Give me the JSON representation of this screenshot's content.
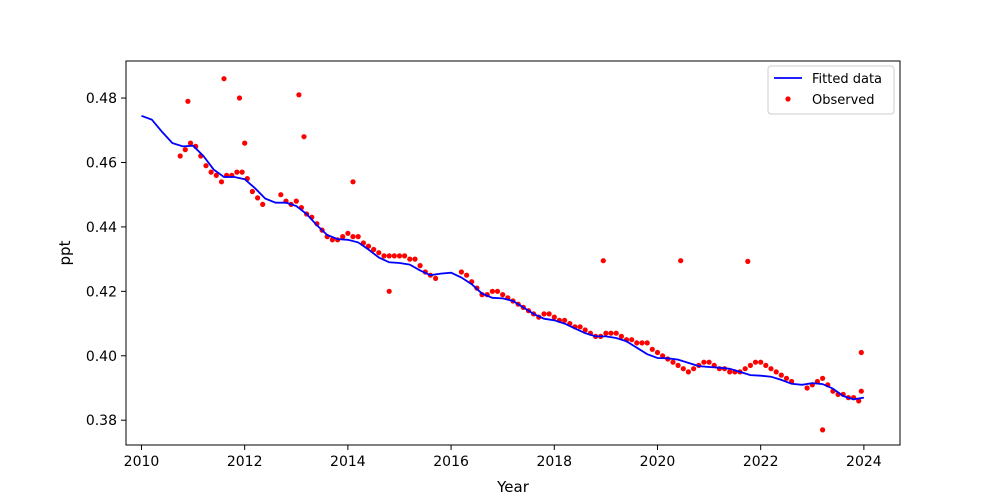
{
  "chart_data": {
    "type": "scatter",
    "title": "",
    "xlabel": "Year",
    "ylabel": "ppt",
    "xlim": [
      2009.7,
      2024.7
    ],
    "ylim": [
      0.3723,
      0.4915
    ],
    "x_ticks": [
      2010,
      2012,
      2014,
      2016,
      2018,
      2020,
      2022,
      2024
    ],
    "x_tick_labels": [
      "2010",
      "2012",
      "2014",
      "2016",
      "2018",
      "2020",
      "2022",
      "2024"
    ],
    "y_ticks": [
      0.38,
      0.4,
      0.42,
      0.44,
      0.46,
      0.48
    ],
    "y_tick_labels": [
      "0.38",
      "0.40",
      "0.42",
      "0.44",
      "0.46",
      "0.48"
    ],
    "grid": false,
    "legend": {
      "position": "top-right",
      "entries": [
        {
          "label": "Fitted data",
          "kind": "line",
          "color": "#0000ff"
        },
        {
          "label": "Observed",
          "kind": "point",
          "color": "#ff0000"
        }
      ]
    },
    "series": [
      {
        "name": "Fitted data",
        "kind": "line",
        "color": "#0000ff",
        "x": [
          2010.0,
          2010.2,
          2010.4,
          2010.6,
          2010.8,
          2011.0,
          2011.2,
          2011.4,
          2011.6,
          2011.8,
          2012.0,
          2012.2,
          2012.4,
          2012.6,
          2012.8,
          2013.0,
          2013.2,
          2013.4,
          2013.6,
          2013.8,
          2014.0,
          2014.2,
          2014.4,
          2014.6,
          2014.8,
          2015.0,
          2015.2,
          2015.4,
          2015.6,
          2015.8,
          2016.0,
          2016.2,
          2016.4,
          2016.6,
          2016.8,
          2017.0,
          2017.2,
          2017.4,
          2017.6,
          2017.8,
          2018.0,
          2018.2,
          2018.4,
          2018.6,
          2018.8,
          2019.0,
          2019.2,
          2019.4,
          2019.6,
          2019.8,
          2020.0,
          2020.2,
          2020.4,
          2020.6,
          2020.8,
          2021.0,
          2021.2,
          2021.4,
          2021.6,
          2021.8,
          2022.0,
          2022.2,
          2022.4,
          2022.6,
          2022.8,
          2023.0,
          2023.2,
          2023.4,
          2023.6,
          2023.8,
          2024.0
        ],
        "y": [
          0.4745,
          0.4733,
          0.4695,
          0.466,
          0.465,
          0.4652,
          0.462,
          0.4578,
          0.4555,
          0.4555,
          0.4548,
          0.452,
          0.4488,
          0.4475,
          0.4475,
          0.4465,
          0.444,
          0.4405,
          0.4375,
          0.4362,
          0.436,
          0.4352,
          0.433,
          0.4305,
          0.429,
          0.4288,
          0.4283,
          0.4265,
          0.425,
          0.4255,
          0.4258,
          0.4243,
          0.4222,
          0.4193,
          0.418,
          0.4178,
          0.417,
          0.415,
          0.413,
          0.4115,
          0.411,
          0.41,
          0.4085,
          0.407,
          0.406,
          0.406,
          0.4055,
          0.4045,
          0.4025,
          0.4005,
          0.3993,
          0.3992,
          0.3988,
          0.3978,
          0.3968,
          0.3965,
          0.3963,
          0.396,
          0.395,
          0.394,
          0.3938,
          0.3935,
          0.3925,
          0.3913,
          0.391,
          0.3915,
          0.3912,
          0.3898,
          0.3875,
          0.3865,
          0.387
        ]
      },
      {
        "name": "Observed",
        "kind": "scatter",
        "color": "#ff0000",
        "x": [
          2010.75,
          2010.85,
          2010.95,
          2011.05,
          2011.15,
          2011.25,
          2011.35,
          2011.45,
          2011.55,
          2011.65,
          2011.75,
          2011.85,
          2011.95,
          2012.05,
          2012.15,
          2012.25,
          2012.35,
          2012.7,
          2012.8,
          2012.9,
          2013.0,
          2013.1,
          2013.2,
          2013.3,
          2013.4,
          2013.5,
          2013.6,
          2013.7,
          2013.8,
          2013.9,
          2014.0,
          2014.1,
          2014.2,
          2014.3,
          2014.4,
          2014.5,
          2014.6,
          2014.7,
          2014.8,
          2014.9,
          2015.0,
          2015.1,
          2015.2,
          2015.3,
          2015.4,
          2015.5,
          2015.6,
          2015.7,
          2016.2,
          2016.3,
          2016.4,
          2016.5,
          2016.6,
          2016.7,
          2016.8,
          2016.9,
          2017.0,
          2017.1,
          2017.2,
          2017.3,
          2017.4,
          2017.5,
          2017.6,
          2017.7,
          2017.8,
          2017.9,
          2018.0,
          2018.1,
          2018.2,
          2018.3,
          2018.4,
          2018.5,
          2018.6,
          2018.7,
          2018.8,
          2018.9,
          2019.0,
          2019.1,
          2019.2,
          2019.3,
          2019.4,
          2019.5,
          2019.6,
          2019.7,
          2019.8,
          2019.9,
          2020.0,
          2020.1,
          2020.2,
          2020.3,
          2020.4,
          2020.5,
          2020.6,
          2020.7,
          2020.8,
          2020.9,
          2021.0,
          2021.1,
          2021.2,
          2021.3,
          2021.4,
          2021.5,
          2021.6,
          2021.7,
          2021.8,
          2021.9,
          2022.0,
          2022.1,
          2022.2,
          2022.3,
          2022.4,
          2022.5,
          2022.6,
          2022.9,
          2023.0,
          2023.1,
          2023.2,
          2023.3,
          2023.4,
          2023.5,
          2023.6,
          2023.7,
          2023.8,
          2023.9,
          2023.95,
          2011.6,
          2011.9,
          2013.05,
          2012.0,
          2013.15,
          2020.45,
          2018.95,
          2021.75,
          2014.1,
          2014.8,
          2023.2,
          2023.95,
          2010.9
        ],
        "y": [
          0.462,
          0.464,
          0.466,
          0.465,
          0.462,
          0.459,
          0.457,
          0.456,
          0.454,
          0.456,
          0.456,
          0.457,
          0.457,
          0.455,
          0.451,
          0.449,
          0.447,
          0.45,
          0.448,
          0.447,
          0.448,
          0.446,
          0.444,
          0.443,
          0.441,
          0.439,
          0.437,
          0.436,
          0.436,
          0.437,
          0.438,
          0.437,
          0.437,
          0.435,
          0.434,
          0.433,
          0.432,
          0.431,
          0.431,
          0.431,
          0.431,
          0.431,
          0.43,
          0.43,
          0.428,
          0.426,
          0.425,
          0.424,
          0.426,
          0.425,
          0.423,
          0.421,
          0.419,
          0.419,
          0.42,
          0.42,
          0.419,
          0.418,
          0.417,
          0.416,
          0.415,
          0.414,
          0.413,
          0.412,
          0.413,
          0.413,
          0.412,
          0.411,
          0.411,
          0.41,
          0.409,
          0.409,
          0.408,
          0.407,
          0.406,
          0.406,
          0.407,
          0.407,
          0.407,
          0.406,
          0.405,
          0.405,
          0.404,
          0.404,
          0.404,
          0.402,
          0.401,
          0.4,
          0.399,
          0.398,
          0.397,
          0.396,
          0.395,
          0.396,
          0.397,
          0.398,
          0.398,
          0.397,
          0.396,
          0.396,
          0.395,
          0.395,
          0.395,
          0.396,
          0.397,
          0.398,
          0.398,
          0.397,
          0.396,
          0.395,
          0.394,
          0.393,
          0.392,
          0.39,
          0.391,
          0.392,
          0.393,
          0.391,
          0.389,
          0.388,
          0.388,
          0.387,
          0.387,
          0.386,
          0.389,
          0.486,
          0.48,
          0.481,
          0.466,
          0.468,
          0.4295,
          0.4295,
          0.4293,
          0.454,
          0.42,
          0.377,
          0.401,
          0.479
        ]
      }
    ]
  }
}
